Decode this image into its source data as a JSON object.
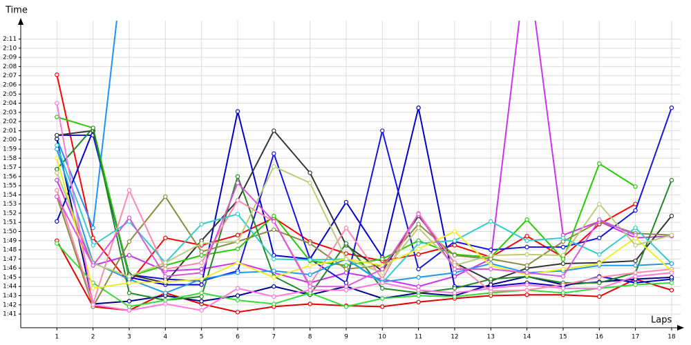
{
  "chart_data": {
    "type": "line",
    "y_label": "Time",
    "x_label": "Laps",
    "x": [
      1,
      2,
      3,
      4,
      5,
      6,
      7,
      8,
      9,
      10,
      11,
      12,
      13,
      14,
      15,
      16,
      17,
      18
    ],
    "xlim": [
      0,
      18.25
    ],
    "xticks": [
      1,
      2,
      3,
      4,
      5,
      6,
      7,
      8,
      9,
      10,
      11,
      12,
      13,
      14,
      15,
      16,
      17,
      18
    ],
    "ylim": [
      99.5,
      133
    ],
    "yticks": [
      {
        "value": 101,
        "label": "1:41"
      },
      {
        "value": 102,
        "label": "1:42"
      },
      {
        "value": 103,
        "label": "1:43"
      },
      {
        "value": 104,
        "label": "1:44"
      },
      {
        "value": 105,
        "label": "1:45"
      },
      {
        "value": 106,
        "label": "1:46"
      },
      {
        "value": 107,
        "label": "1:47"
      },
      {
        "value": 108,
        "label": "1:48"
      },
      {
        "value": 109,
        "label": "1:49"
      },
      {
        "value": 110,
        "label": "1:50"
      },
      {
        "value": 111,
        "label": "1:51"
      },
      {
        "value": 112,
        "label": "1:52"
      },
      {
        "value": 113,
        "label": "1:53"
      },
      {
        "value": 114,
        "label": "1:54"
      },
      {
        "value": 115,
        "label": "1:55"
      },
      {
        "value": 116,
        "label": "1:56"
      },
      {
        "value": 117,
        "label": "1:57"
      },
      {
        "value": 118,
        "label": "1:58"
      },
      {
        "value": 119,
        "label": "1:59"
      },
      {
        "value": 120,
        "label": "2:00"
      },
      {
        "value": 121,
        "label": "2:01"
      },
      {
        "value": 122,
        "label": "2:02"
      },
      {
        "value": 123,
        "label": "2:03"
      },
      {
        "value": 124,
        "label": "2:04"
      },
      {
        "value": 125,
        "label": "2:05"
      },
      {
        "value": 126,
        "label": "2:06"
      },
      {
        "value": 127,
        "label": "2:07"
      },
      {
        "value": 128,
        "label": "2:08"
      },
      {
        "value": 129,
        "label": "2:09"
      },
      {
        "value": 130,
        "label": "2:10"
      },
      {
        "value": 131,
        "label": "2:11"
      }
    ],
    "grid": true,
    "series": [
      {
        "color": "#ff0000",
        "values": [
          127.1,
          109.3,
          104.4,
          109.3,
          108.5,
          109.6,
          111.5,
          108.9,
          107.6,
          106.8,
          107.5,
          108.5,
          107.2,
          109.5,
          107.2,
          110.8,
          113.0,
          null
        ]
      },
      {
        "color": "#e00000",
        "values": [
          109.0,
          101.8,
          101.4,
          103.3,
          102.1,
          101.2,
          101.8,
          102.1,
          101.9,
          101.8,
          102.3,
          102.7,
          103.0,
          103.1,
          103.1,
          102.9,
          104.8,
          103.6
        ]
      },
      {
        "color": "#1e90ff",
        "values": [
          120.1,
          110.4,
          145,
          null,
          null,
          null,
          null,
          null,
          null,
          null,
          null,
          null,
          null,
          null,
          null,
          null,
          null,
          null
        ]
      },
      {
        "color": "#cc33ee",
        "values": [
          115.6,
          106.3,
          107.4,
          105.7,
          105.9,
          106.6,
          105.5,
          104.4,
          105.5,
          104.8,
          104.0,
          105.1,
          107.0,
          140,
          109.6,
          111.1,
          109.3,
          109.5
        ]
      },
      {
        "color": "#0000cc",
        "values": [
          111.1,
          121.0,
          105.0,
          104.2,
          104.2,
          123.1,
          107.4,
          107.0,
          113.2,
          107.2,
          123.5,
          104.0,
          104.0,
          104.4,
          104.0,
          105.1,
          104.4,
          104.8
        ]
      },
      {
        "color": "#1515dd",
        "values": [
          120.5,
          120.5,
          105.3,
          104.8,
          104.6,
          105.7,
          118.5,
          107.0,
          104.4,
          121.0,
          105.9,
          108.9,
          108.0,
          108.3,
          108.3,
          109.3,
          112.3,
          123.5
        ]
      },
      {
        "color": "#000088",
        "values": [
          120.1,
          102.1,
          102.4,
          103.0,
          102.4,
          103.0,
          104.0,
          103.1,
          104.0,
          102.7,
          103.3,
          103.0,
          104.2,
          105.1,
          104.2,
          104.5,
          104.8,
          105.0
        ]
      },
      {
        "color": "#333333",
        "values": [
          120.5,
          121.0,
          105.3,
          104.4,
          109.0,
          113.4,
          121.0,
          116.4,
          108.5,
          105.7,
          111.7,
          106.6,
          104.6,
          106.0,
          106.5,
          106.6,
          106.8,
          111.7
        ]
      },
      {
        "color": "#22cc00",
        "values": [
          122.5,
          121.3,
          105.1,
          106.3,
          107.4,
          108.1,
          111.7,
          106.8,
          106.3,
          107.0,
          109.0,
          107.5,
          107.2,
          111.3,
          107.0,
          117.4,
          114.9,
          null
        ]
      },
      {
        "color": "#228822",
        "values": [
          116.8,
          121.3,
          103.3,
          102.5,
          102.9,
          116.0,
          105.1,
          103.1,
          108.7,
          103.8,
          103.3,
          103.8,
          104.8,
          105.1,
          104.4,
          104.4,
          105.5,
          115.6
        ]
      },
      {
        "color": "#33dd33",
        "values": [
          108.7,
          104.4,
          101.8,
          102.5,
          103.3,
          102.5,
          102.1,
          103.3,
          101.8,
          102.7,
          103.0,
          102.9,
          103.3,
          103.6,
          103.3,
          103.8,
          104.2,
          104.4
        ]
      },
      {
        "color": "#8a8a40",
        "values": [
          113.8,
          101.8,
          108.9,
          113.8,
          107.8,
          108.9,
          110.2,
          108.7,
          105.9,
          106.3,
          110.8,
          107.4,
          107.0,
          106.3,
          108.9,
          111.1,
          109.8,
          109.6
        ]
      },
      {
        "color": "#ff88aa",
        "values": [
          114.5,
          102.1,
          114.5,
          105.9,
          106.6,
          113.4,
          111.1,
          104.2,
          110.4,
          104.8,
          112.0,
          106.6,
          103.5,
          103.6,
          104.2,
          105.0,
          105.5,
          105.9
        ]
      },
      {
        "color": "#33cccc",
        "values": [
          119.4,
          108.5,
          111.1,
          106.6,
          110.8,
          111.9,
          107.0,
          106.9,
          107.0,
          104.4,
          108.7,
          109.0,
          111.1,
          109.0,
          109.3,
          107.5,
          110.4,
          106.5
        ]
      },
      {
        "color": "#2299ee",
        "values": [
          119.0,
          106.6,
          104.8,
          103.3,
          104.8,
          105.5,
          105.7,
          105.3,
          107.0,
          104.5,
          105.0,
          105.5,
          106.5,
          105.5,
          105.7,
          106.3,
          106.3,
          106.5
        ]
      },
      {
        "color": "#eeee22",
        "values": [
          118.0,
          103.8,
          104.4,
          104.5,
          104.8,
          106.6,
          105.0,
          106.3,
          107.0,
          106.3,
          108.1,
          110.0,
          106.3,
          105.3,
          105.9,
          106.5,
          109.3,
          105.7
        ]
      },
      {
        "color": "#bbcc77",
        "values": [
          116.4,
          106.5,
          105.1,
          106.6,
          108.7,
          108.9,
          117.1,
          115.3,
          107.0,
          105.5,
          110.4,
          106.3,
          107.4,
          107.5,
          107.4,
          113.0,
          108.5,
          109.6
        ]
      },
      {
        "color": "#dd55dd",
        "values": [
          113.8,
          106.3,
          111.5,
          105.1,
          105.5,
          115.3,
          111.1,
          104.0,
          104.0,
          105.9,
          111.9,
          105.9,
          105.9,
          105.5,
          105.1,
          111.3,
          109.6,
          null
        ]
      },
      {
        "color": "#ff77dd",
        "values": [
          124.0,
          102.0,
          101.4,
          102.1,
          101.4,
          103.8,
          102.9,
          103.6,
          103.6,
          104.4,
          103.6,
          103.3,
          103.8,
          104.2,
          103.8,
          103.8,
          105.1,
          105.5
        ]
      }
    ]
  }
}
